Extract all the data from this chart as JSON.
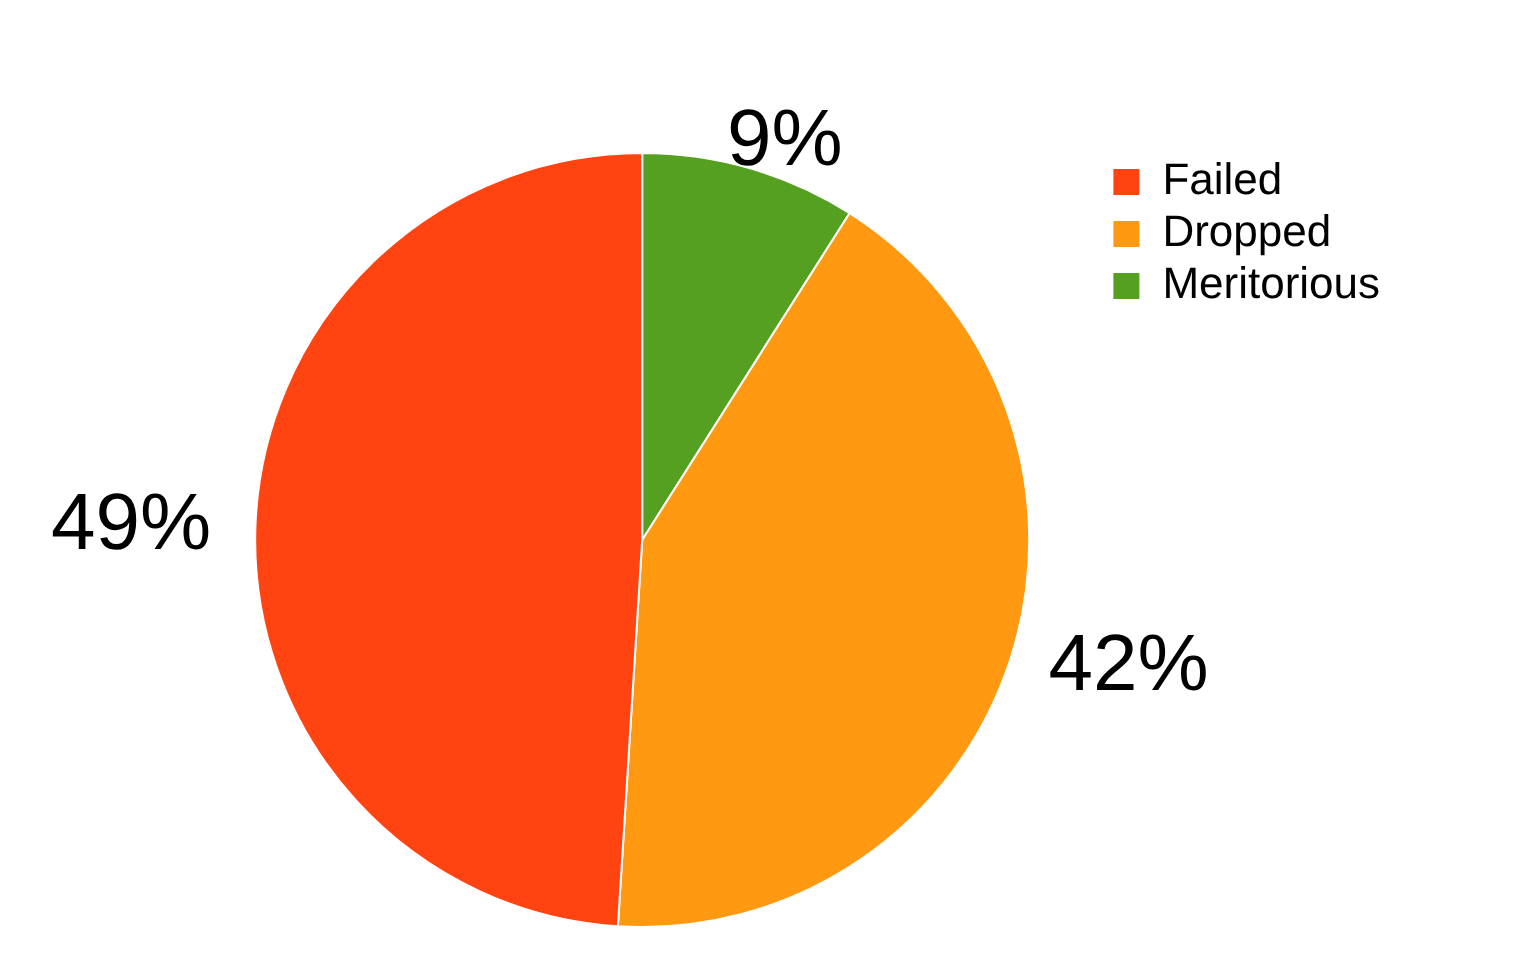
{
  "chart_data": {
    "type": "pie",
    "categories": [
      "Failed",
      "Dropped",
      "Meritorious"
    ],
    "values": [
      49,
      42,
      9
    ],
    "colors": [
      "#ff4411",
      "#ff9911",
      "#55a020"
    ],
    "value_labels": [
      "49%",
      "42%",
      "9%"
    ],
    "legend": "right"
  }
}
